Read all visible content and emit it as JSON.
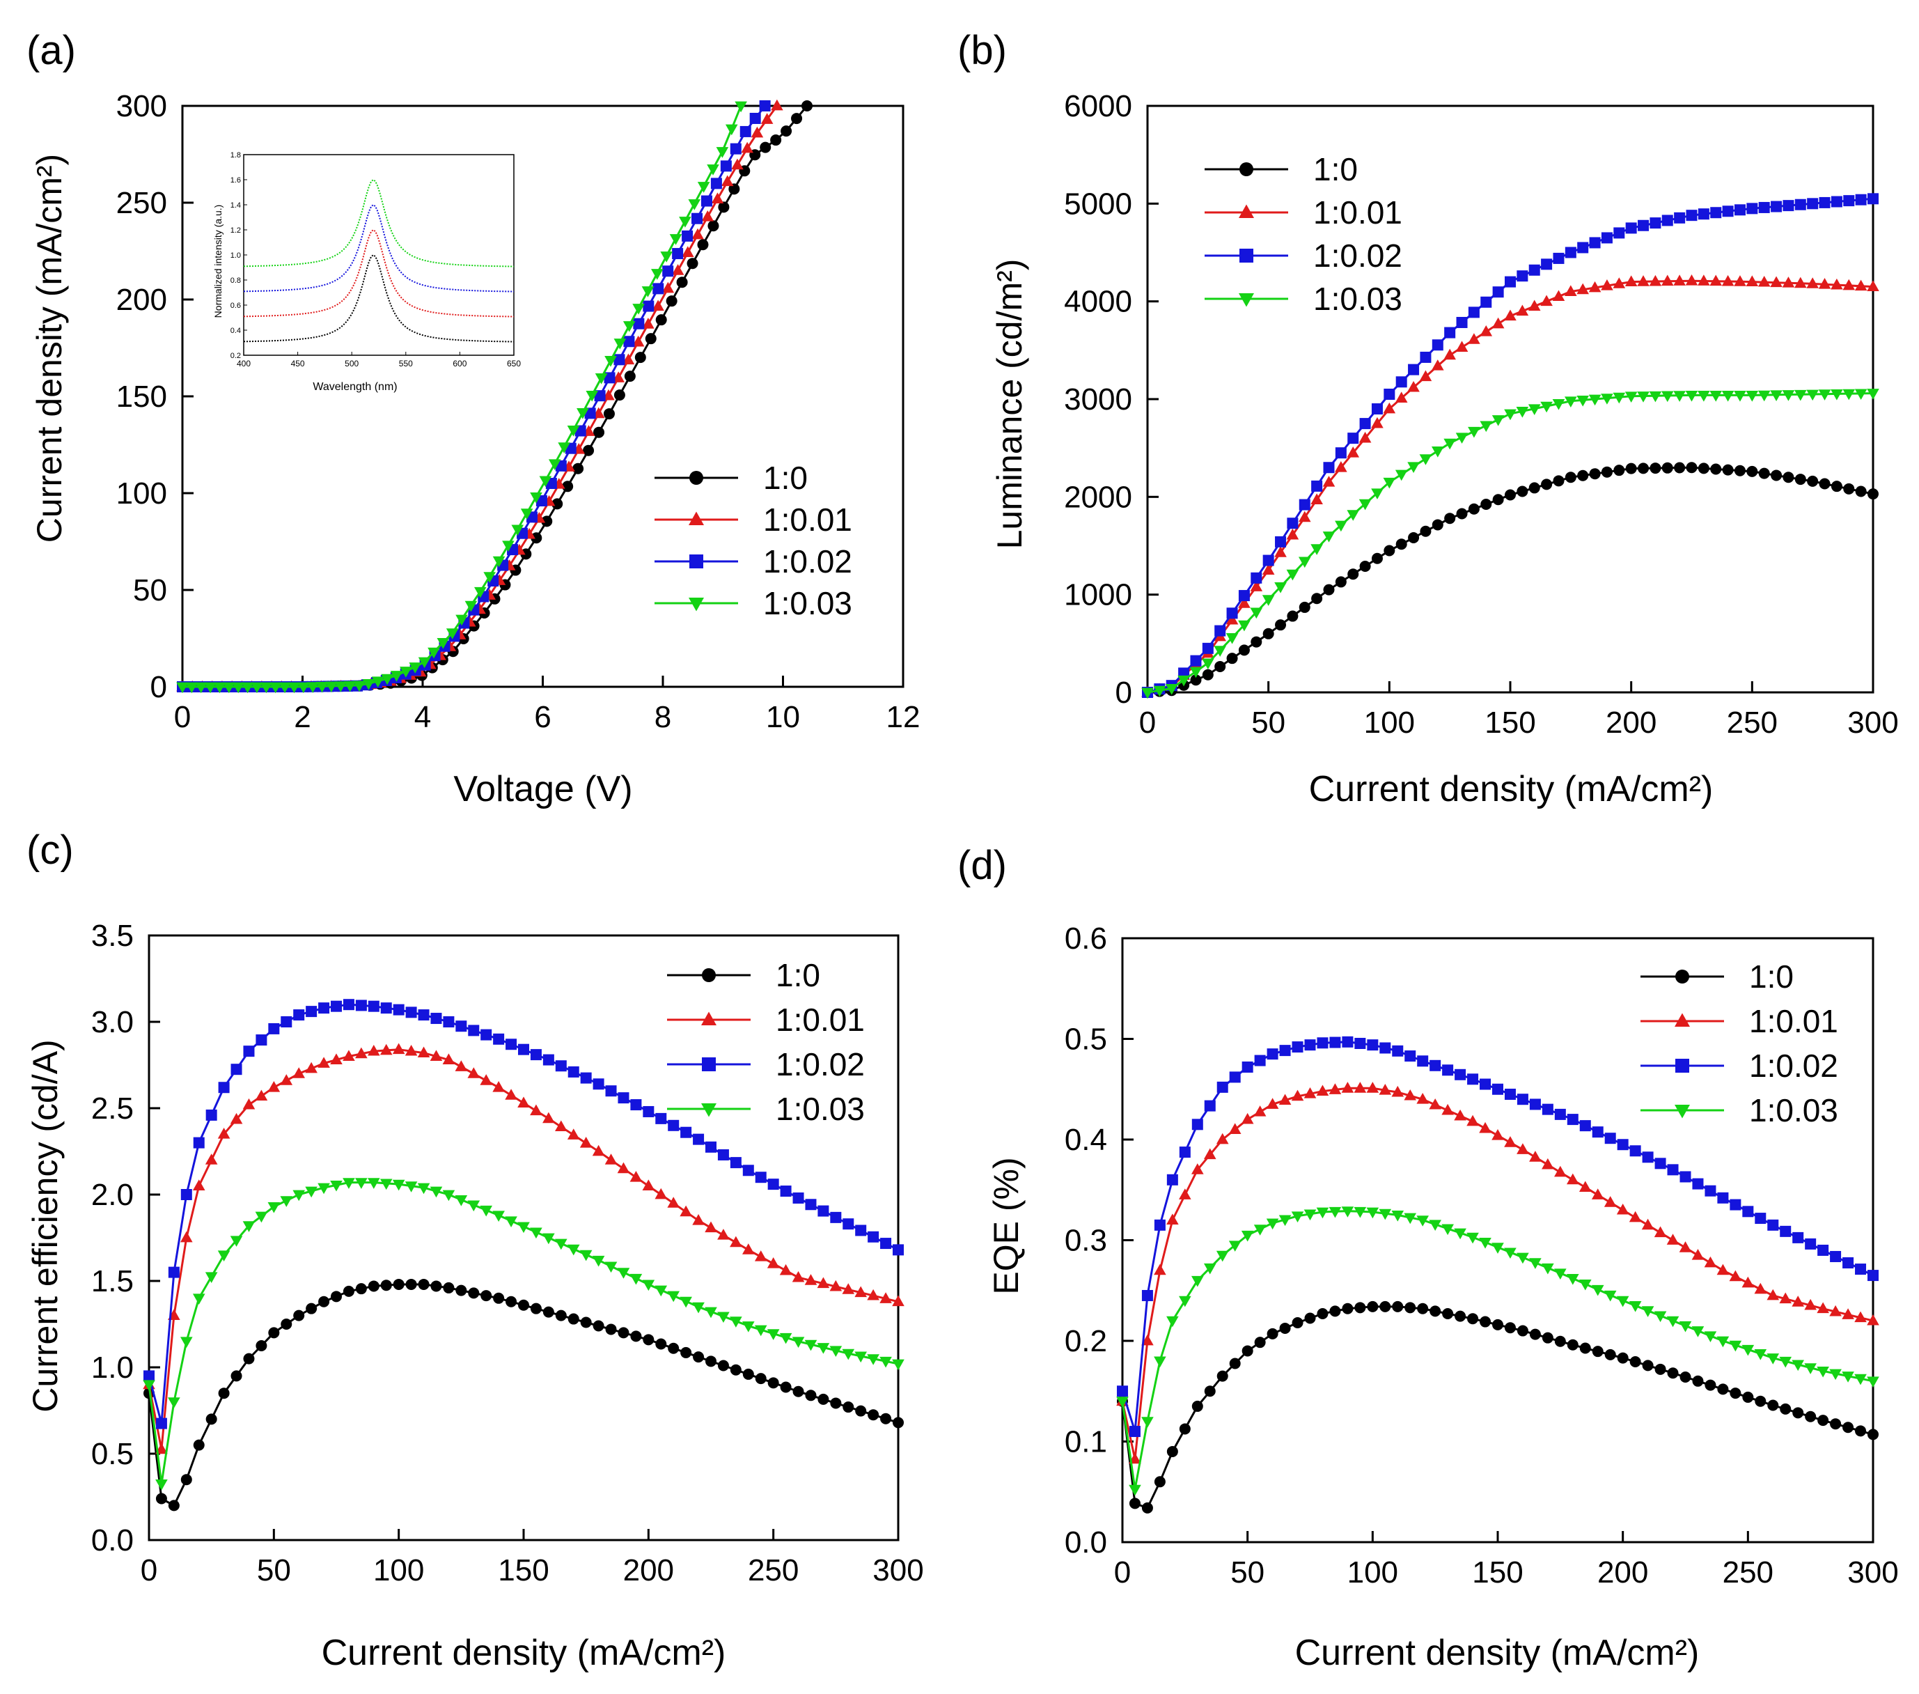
{
  "figure": {
    "series_names": [
      "1:0",
      "1:0.01",
      "1:0.02",
      "1:0.03"
    ],
    "series_colors": [
      "#000000",
      "#e01b1b",
      "#1414dc",
      "#14d214"
    ],
    "series_markers": [
      "circle",
      "triangle-up",
      "square",
      "triangle-down"
    ]
  },
  "chart_data": [
    {
      "panel": "(a)",
      "type": "line",
      "title": "",
      "xlabel": "Voltage (V)",
      "ylabel": "Current density (mA/cm²)",
      "xlim": [
        0,
        12
      ],
      "ylim": [
        0,
        300
      ],
      "xticks": [
        0,
        2,
        4,
        6,
        8,
        10,
        12
      ],
      "yticks": [
        0,
        50,
        100,
        150,
        200,
        250,
        300
      ],
      "legend_position": "right-middle",
      "series": [
        {
          "name": "1:0",
          "x": [
            0,
            1,
            2,
            3,
            3.5,
            4,
            4.5,
            5,
            5.5,
            6,
            6.5,
            7,
            7.5,
            8,
            8.5,
            9,
            9.5,
            10,
            10.4
          ],
          "values": [
            0,
            0,
            0,
            0.5,
            2,
            6,
            18,
            37,
            58,
            82,
            108,
            135,
            163,
            191,
            219,
            247,
            274,
            285,
            300
          ]
        },
        {
          "name": "1:0.01",
          "x": [
            0,
            1,
            2,
            3,
            3.5,
            4,
            4.5,
            5,
            5.5,
            6,
            6.5,
            7,
            7.5,
            8,
            8.5,
            9,
            9.5,
            9.9
          ],
          "values": [
            0,
            0,
            0,
            0.5,
            3,
            8,
            22,
            42,
            65,
            90,
            117,
            145,
            173,
            201,
            229,
            257,
            283,
            300
          ]
        },
        {
          "name": "1:0.02",
          "x": [
            0,
            1,
            2,
            3,
            3.5,
            4,
            4.5,
            5,
            5.5,
            6,
            6.5,
            7,
            7.5,
            8,
            8.5,
            9,
            9.4,
            9.7
          ],
          "values": [
            0,
            0,
            0,
            0.5,
            4,
            10,
            25,
            46,
            71,
            97,
            125,
            153,
            182,
            210,
            238,
            266,
            288,
            300
          ]
        },
        {
          "name": "1:0.03",
          "x": [
            0,
            1,
            2,
            3,
            3.5,
            4,
            4.5,
            5,
            5.5,
            6,
            6.5,
            7,
            7.5,
            8,
            8.5,
            9,
            9.3
          ],
          "values": [
            0,
            0,
            0,
            0.8,
            5,
            12,
            28,
            51,
            77,
            104,
            132,
            161,
            190,
            219,
            248,
            277,
            300
          ]
        }
      ],
      "inset": {
        "xlabel": "Wavelength (nm)",
        "ylabel": "Normalized intensity (a.u.)",
        "xlim": [
          400,
          650
        ],
        "ylim": [
          0.2,
          1.8
        ],
        "xticks": [
          400,
          450,
          500,
          550,
          600,
          650
        ],
        "yticks": [
          0.2,
          0.4,
          0.6,
          0.8,
          1.0,
          1.2,
          1.4,
          1.6,
          1.8
        ],
        "peak_nm": 520,
        "series": [
          {
            "name": "1:0",
            "baseline": 0.3,
            "peak": 1.0
          },
          {
            "name": "1:0.01",
            "baseline": 0.5,
            "peak": 1.2
          },
          {
            "name": "1:0.02",
            "baseline": 0.7,
            "peak": 1.4
          },
          {
            "name": "1:0.03",
            "baseline": 0.9,
            "peak": 1.6
          }
        ]
      }
    },
    {
      "panel": "(b)",
      "type": "line",
      "title": "",
      "xlabel": "Current density (mA/cm²)",
      "ylabel": "Luminance (cd/m²)",
      "xlim": [
        0,
        300
      ],
      "ylim": [
        0,
        6000
      ],
      "xticks": [
        0,
        50,
        100,
        150,
        200,
        250,
        300
      ],
      "yticks": [
        0,
        1000,
        2000,
        3000,
        4000,
        5000,
        6000
      ],
      "legend_position": "top-left",
      "series": [
        {
          "name": "1:0",
          "x": [
            0,
            10,
            25,
            50,
            75,
            100,
            125,
            150,
            175,
            200,
            225,
            250,
            275,
            300
          ],
          "values": [
            0,
            20,
            180,
            600,
            1050,
            1450,
            1780,
            2020,
            2200,
            2290,
            2300,
            2260,
            2160,
            2030
          ]
        },
        {
          "name": "1:0.01",
          "x": [
            0,
            10,
            25,
            50,
            75,
            100,
            125,
            150,
            175,
            200,
            225,
            250,
            275,
            300
          ],
          "values": [
            0,
            60,
            400,
            1250,
            2150,
            2900,
            3450,
            3850,
            4100,
            4200,
            4210,
            4200,
            4180,
            4150
          ]
        },
        {
          "name": "1:0.02",
          "x": [
            0,
            10,
            25,
            50,
            75,
            100,
            125,
            150,
            175,
            200,
            225,
            250,
            275,
            300
          ],
          "values": [
            0,
            70,
            450,
            1350,
            2300,
            3050,
            3680,
            4200,
            4500,
            4750,
            4880,
            4950,
            5000,
            5050
          ]
        },
        {
          "name": "1:0.03",
          "x": [
            0,
            10,
            25,
            50,
            75,
            100,
            125,
            150,
            175,
            200,
            225,
            250,
            275,
            300
          ],
          "values": [
            0,
            40,
            300,
            950,
            1600,
            2150,
            2550,
            2850,
            2980,
            3030,
            3040,
            3040,
            3050,
            3060
          ]
        }
      ]
    },
    {
      "panel": "(c)",
      "type": "line",
      "title": "",
      "xlabel": "Current density (mA/cm²)",
      "ylabel": "Current efficiency (cd/A)",
      "xlim": [
        0,
        300
      ],
      "ylim": [
        0,
        3.5
      ],
      "xticks": [
        0,
        50,
        100,
        150,
        200,
        250,
        300
      ],
      "yticks": [
        0.0,
        0.5,
        1.0,
        1.5,
        2.0,
        2.5,
        3.0,
        3.5
      ],
      "legend_position": "top-right",
      "series": [
        {
          "name": "1:0",
          "x": [
            0,
            2,
            4,
            6,
            8,
            10,
            15,
            20,
            30,
            40,
            50,
            60,
            70,
            80,
            90,
            100,
            110,
            120,
            140,
            160,
            180,
            200,
            220,
            240,
            260,
            280,
            300
          ],
          "values": [
            0.85,
            0.5,
            0.28,
            0.2,
            0.18,
            0.2,
            0.35,
            0.55,
            0.85,
            1.05,
            1.2,
            1.3,
            1.38,
            1.44,
            1.47,
            1.48,
            1.48,
            1.46,
            1.4,
            1.32,
            1.24,
            1.16,
            1.06,
            0.96,
            0.86,
            0.77,
            0.68
          ]
        },
        {
          "name": "1:0.01",
          "x": [
            0,
            2,
            4,
            6,
            8,
            10,
            15,
            20,
            30,
            40,
            50,
            60,
            70,
            80,
            90,
            100,
            110,
            120,
            140,
            160,
            180,
            200,
            220,
            240,
            260,
            280,
            300
          ],
          "values": [
            0.9,
            0.6,
            0.45,
            0.6,
            0.95,
            1.3,
            1.75,
            2.05,
            2.35,
            2.52,
            2.62,
            2.7,
            2.76,
            2.8,
            2.83,
            2.84,
            2.82,
            2.78,
            2.62,
            2.44,
            2.25,
            2.05,
            1.85,
            1.68,
            1.52,
            1.45,
            1.38
          ]
        },
        {
          "name": "1:0.02",
          "x": [
            0,
            2,
            4,
            6,
            8,
            10,
            15,
            20,
            30,
            40,
            50,
            60,
            70,
            80,
            90,
            100,
            110,
            120,
            140,
            160,
            180,
            200,
            220,
            240,
            260,
            280,
            300
          ],
          "values": [
            0.95,
            0.7,
            0.55,
            0.8,
            1.2,
            1.55,
            2.0,
            2.3,
            2.62,
            2.83,
            2.96,
            3.04,
            3.08,
            3.1,
            3.09,
            3.07,
            3.04,
            3.0,
            2.9,
            2.78,
            2.64,
            2.48,
            2.32,
            2.14,
            1.98,
            1.83,
            1.68
          ]
        },
        {
          "name": "1:0.03",
          "x": [
            0,
            2,
            4,
            6,
            8,
            10,
            15,
            20,
            30,
            40,
            50,
            60,
            70,
            80,
            90,
            100,
            110,
            120,
            140,
            160,
            180,
            200,
            220,
            240,
            260,
            280,
            300
          ],
          "values": [
            0.9,
            0.5,
            0.3,
            0.35,
            0.55,
            0.8,
            1.15,
            1.4,
            1.65,
            1.82,
            1.93,
            2.0,
            2.04,
            2.07,
            2.07,
            2.06,
            2.04,
            2.0,
            1.88,
            1.75,
            1.62,
            1.48,
            1.35,
            1.24,
            1.15,
            1.08,
            1.02
          ]
        }
      ]
    },
    {
      "panel": "(d)",
      "type": "line",
      "title": "",
      "xlabel": "Current density (mA/cm²)",
      "ylabel": "EQE (%)",
      "xlim": [
        0,
        300
      ],
      "ylim": [
        0,
        0.6
      ],
      "xticks": [
        0,
        50,
        100,
        150,
        200,
        250,
        300
      ],
      "yticks": [
        0.0,
        0.1,
        0.2,
        0.3,
        0.4,
        0.5,
        0.6
      ],
      "legend_position": "top-right",
      "series": [
        {
          "name": "1:0",
          "x": [
            0,
            2,
            4,
            6,
            8,
            10,
            15,
            20,
            30,
            40,
            50,
            60,
            70,
            80,
            90,
            100,
            110,
            120,
            140,
            160,
            180,
            200,
            220,
            240,
            260,
            280,
            300
          ],
          "values": [
            0.14,
            0.08,
            0.045,
            0.032,
            0.03,
            0.034,
            0.06,
            0.09,
            0.135,
            0.165,
            0.19,
            0.207,
            0.218,
            0.227,
            0.232,
            0.234,
            0.234,
            0.232,
            0.222,
            0.21,
            0.196,
            0.183,
            0.168,
            0.152,
            0.136,
            0.121,
            0.107
          ]
        },
        {
          "name": "1:0.01",
          "x": [
            0,
            2,
            4,
            6,
            8,
            10,
            15,
            20,
            30,
            40,
            50,
            60,
            70,
            80,
            90,
            100,
            110,
            120,
            140,
            160,
            180,
            200,
            220,
            240,
            260,
            280,
            300
          ],
          "values": [
            0.14,
            0.1,
            0.07,
            0.095,
            0.15,
            0.2,
            0.27,
            0.32,
            0.37,
            0.4,
            0.42,
            0.435,
            0.443,
            0.448,
            0.451,
            0.451,
            0.447,
            0.44,
            0.418,
            0.39,
            0.36,
            0.33,
            0.3,
            0.27,
            0.245,
            0.232,
            0.22
          ]
        },
        {
          "name": "1:0.02",
          "x": [
            0,
            2,
            4,
            6,
            8,
            10,
            15,
            20,
            30,
            40,
            50,
            60,
            70,
            80,
            90,
            100,
            110,
            120,
            140,
            160,
            180,
            200,
            220,
            240,
            260,
            280,
            300
          ],
          "values": [
            0.15,
            0.11,
            0.09,
            0.13,
            0.19,
            0.245,
            0.315,
            0.36,
            0.415,
            0.452,
            0.472,
            0.485,
            0.492,
            0.496,
            0.497,
            0.494,
            0.488,
            0.478,
            0.46,
            0.44,
            0.42,
            0.395,
            0.37,
            0.342,
            0.315,
            0.29,
            0.265
          ]
        },
        {
          "name": "1:0.03",
          "x": [
            0,
            2,
            4,
            6,
            8,
            10,
            15,
            20,
            30,
            40,
            50,
            60,
            70,
            80,
            90,
            100,
            110,
            120,
            140,
            160,
            180,
            200,
            220,
            240,
            260,
            280,
            300
          ],
          "values": [
            0.14,
            0.08,
            0.05,
            0.055,
            0.085,
            0.12,
            0.18,
            0.22,
            0.26,
            0.285,
            0.305,
            0.317,
            0.324,
            0.328,
            0.329,
            0.328,
            0.325,
            0.32,
            0.303,
            0.283,
            0.262,
            0.24,
            0.22,
            0.2,
            0.183,
            0.17,
            0.16
          ]
        }
      ]
    }
  ]
}
